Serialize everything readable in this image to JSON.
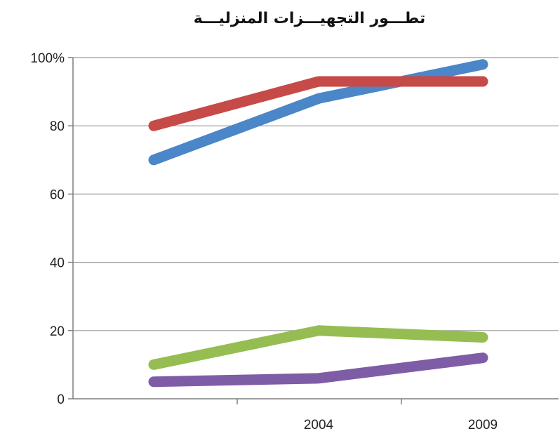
{
  "chart_data": {
    "type": "line",
    "title": "تطـــور التجهيـــزات المنزليـــة",
    "xlabel": "",
    "ylabel": "",
    "x": [
      "",
      "2004",
      "2009"
    ],
    "ylim": [
      0,
      100
    ],
    "yticks": [
      0,
      20,
      40,
      60,
      80,
      100
    ],
    "ytick_labels": [
      "0",
      "20",
      "40",
      "60",
      "80",
      "100%"
    ],
    "grid": true,
    "legend": "none",
    "series": [
      {
        "color": "#4a86c8",
        "values": [
          70,
          88,
          98
        ]
      },
      {
        "color": "#c64a47",
        "values": [
          80,
          93,
          93
        ]
      },
      {
        "color": "#95bd52",
        "values": [
          10,
          20,
          18
        ]
      },
      {
        "color": "#7e5ca6",
        "values": [
          5,
          6,
          12
        ]
      }
    ]
  }
}
